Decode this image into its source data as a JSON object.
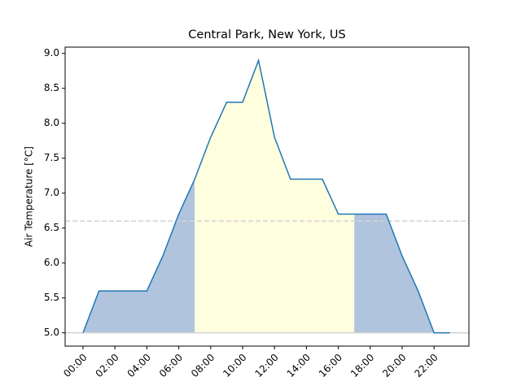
{
  "chart_data": {
    "type": "area-line",
    "title": "Central Park, New York, US",
    "y_label": "Air Temperature [°C]",
    "categories": [
      "00:00",
      null,
      "02:00",
      null,
      "04:00",
      null,
      "06:00",
      null,
      "08:00",
      null,
      "10:00",
      null,
      "12:00",
      null,
      "14:00",
      null,
      "16:00",
      null,
      "18:00",
      null,
      "20:00",
      null,
      "22:00",
      null
    ],
    "values": [
      5.0,
      5.6,
      5.6,
      5.6,
      5.6,
      6.1,
      6.7,
      7.2,
      7.8,
      8.3,
      8.3,
      8.9,
      7.8,
      7.2,
      7.2,
      7.2,
      6.7,
      6.7,
      6.7,
      6.7,
      6.1,
      5.6,
      5.0,
      5.0
    ],
    "color": "#1f77b4",
    "fill_color": "#b0c4de",
    "highlight": {
      "start": 7,
      "end": 17,
      "color": "#ffffe0"
    },
    "baseline": 5.0,
    "mean_line": 6.6,
    "ylim": [
      4.81,
      9.09
    ],
    "yticks": [
      {
        "value": 5,
        "label": "5.0"
      },
      5.5,
      {
        "value": 6,
        "label": "6.0"
      },
      6.5,
      {
        "value": 7,
        "label": "7.0"
      },
      7.5,
      {
        "value": 8,
        "label": "8.0"
      },
      8.5,
      {
        "value": 9,
        "label": "9.0"
      }
    ]
  }
}
